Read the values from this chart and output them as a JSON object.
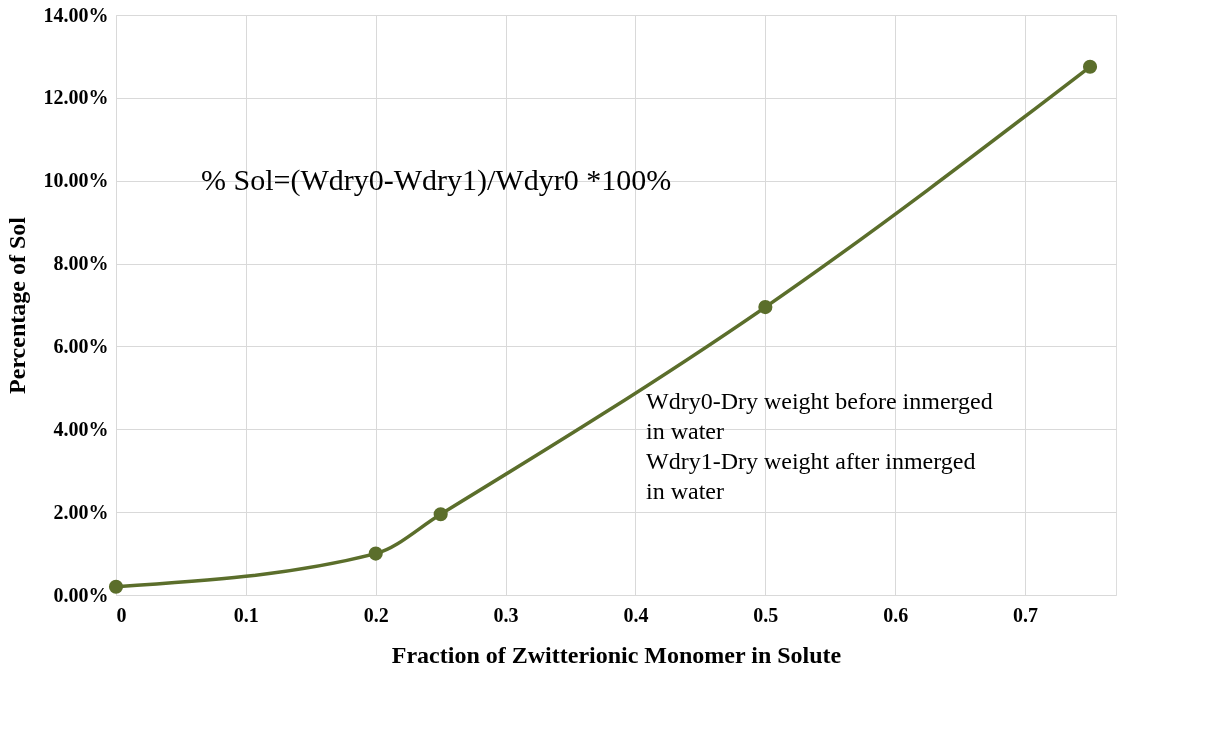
{
  "chart_data": {
    "type": "line",
    "xlabel": "Fraction of Zwitterionic Monomer in Solute",
    "ylabel": "Percentage of Sol",
    "x": [
      0,
      0.2,
      0.25,
      0.5,
      0.75
    ],
    "series": [
      {
        "color": "#5b6e2b",
        "values": [
          0.2,
          1.0,
          1.95,
          6.95,
          12.75
        ]
      }
    ],
    "xlim": [
      0,
      0.77
    ],
    "xticks": [
      0,
      0.1,
      0.2,
      0.3,
      0.4,
      0.5,
      0.6,
      0.7
    ],
    "ylim": [
      0,
      14
    ],
    "yticks": [
      {
        "value": 0,
        "label": "0.00%"
      },
      {
        "value": 2,
        "label": "2.00%"
      },
      {
        "value": 4,
        "label": "4.00%"
      },
      {
        "value": 6,
        "label": "6.00%"
      },
      {
        "value": 8,
        "label": "8.00%"
      },
      {
        "value": 10,
        "label": "10.00%"
      },
      {
        "value": 12,
        "label": "12.00%"
      },
      {
        "value": 14,
        "label": "14.00%"
      }
    ],
    "annotations": [
      "% Sol=(Wdry0-Wdry1)/Wdyr0 *100%",
      "Wdry0-Dry weight before inmerged in water",
      "Wdry1-Dry weight after inmerged in water"
    ],
    "grid": true,
    "marker": "circle",
    "line_style": "solid"
  }
}
